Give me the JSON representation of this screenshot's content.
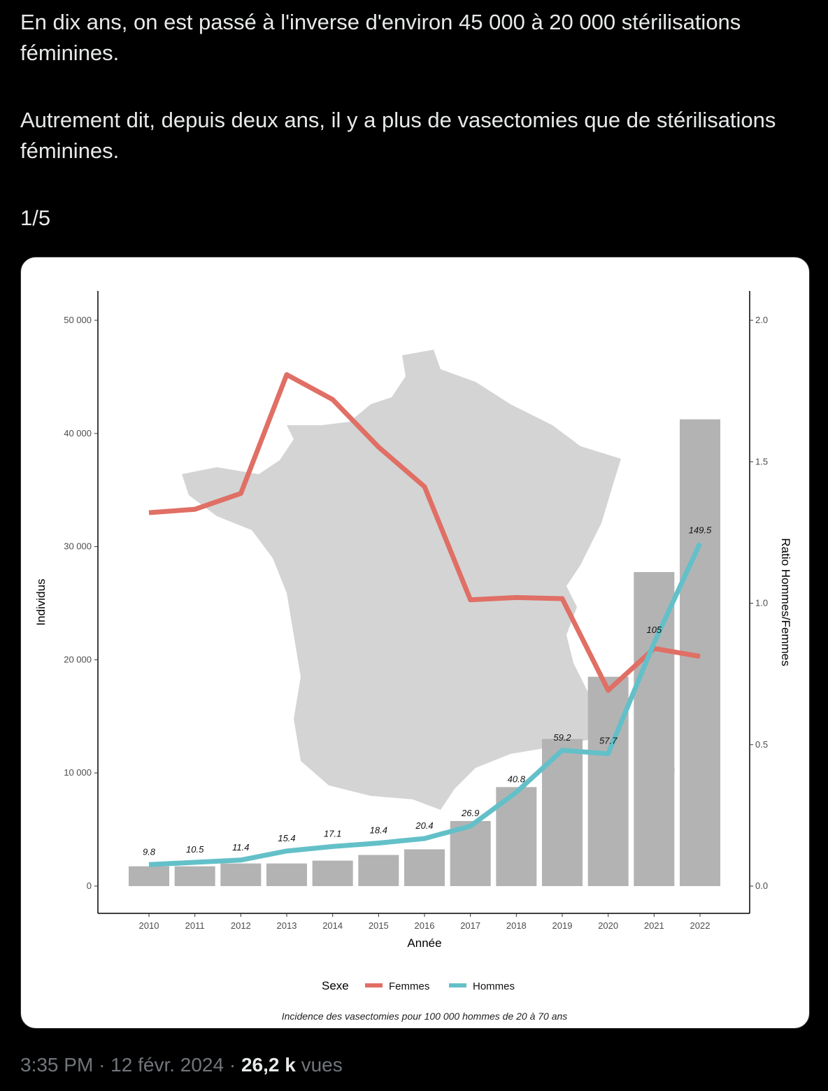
{
  "tweet": {
    "line1": "En dix ans, on est passé à l'inverse d'environ 45 000 à 20 000 stérilisations féminines.",
    "line2": "Autrement dit, depuis deux ans, il y a plus de vasectomies que de stérilisations féminines.",
    "counter": "1/5"
  },
  "meta": {
    "time": "3:35 PM",
    "date": "12 févr. 2024",
    "sep": "·",
    "views_count": "26,2 k",
    "views_label": "vues"
  },
  "chart_data": {
    "type": "bar+line",
    "years": [
      "2010",
      "2011",
      "2012",
      "2013",
      "2014",
      "2015",
      "2016",
      "2017",
      "2018",
      "2019",
      "2020",
      "2021",
      "2022"
    ],
    "bars_ratio": [
      0.07,
      0.07,
      0.08,
      0.08,
      0.09,
      0.11,
      0.13,
      0.23,
      0.35,
      0.52,
      0.74,
      1.11,
      1.65
    ],
    "series": [
      {
        "name": "Femmes",
        "color": "#e06f65",
        "values": [
          33000,
          33300,
          34700,
          45200,
          43000,
          38800,
          35300,
          25300,
          25500,
          25400,
          17300,
          21000,
          20300
        ]
      },
      {
        "name": "Hommes",
        "color": "#63c0c8",
        "values": [
          1900,
          2100,
          2300,
          3100,
          3500,
          3800,
          4200,
          5300,
          8300,
          12000,
          11700,
          21500,
          30300
        ]
      }
    ],
    "data_labels": [
      "9.8",
      "10.5",
      "11.4",
      "15.4",
      "17.1",
      "18.4",
      "20.4",
      "26.9",
      "40.8",
      "59.2",
      "57.7",
      "105",
      "149.5"
    ],
    "y_left_ticks": [
      "0",
      "10 000",
      "20 000",
      "30 000",
      "40 000",
      "50 000"
    ],
    "y_left_range": [
      0,
      50000
    ],
    "y_right_ticks": [
      "0.0",
      "0.5",
      "1.0",
      "1.5",
      "2.0"
    ],
    "y_right_range": [
      0,
      2.0
    ],
    "xlabel": "Année",
    "ylabel": "Individus",
    "ylabel_right": "Ratio Hommes/Femmes",
    "legend_title": "Sexe",
    "legend_position": "bottom",
    "caption": "Incidence des vasectomies pour 100 000 hommes de 20 à 70 ans",
    "bar_color": "#b3b3b3",
    "background_map": "france-map"
  }
}
